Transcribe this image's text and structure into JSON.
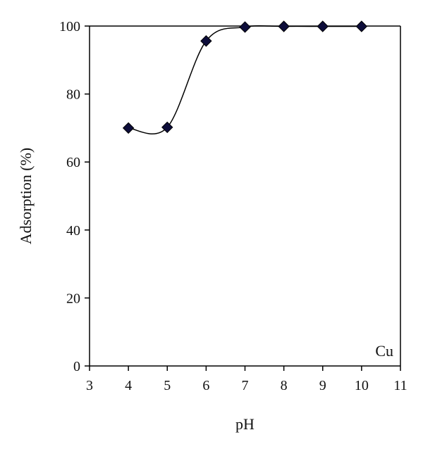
{
  "chart_data": {
    "type": "scatter",
    "xlabel": "pH",
    "ylabel": "Adsorption (%)",
    "xlim": [
      3,
      11
    ],
    "ylim": [
      0,
      100
    ],
    "xticks": [
      3,
      4,
      5,
      6,
      7,
      8,
      9,
      10,
      11
    ],
    "yticks": [
      0,
      20,
      40,
      60,
      80,
      100
    ],
    "grid": false,
    "annotation": "Cu",
    "annotation_position": "bottom-right",
    "marker": "diamond",
    "marker_color": "#0d0d3a",
    "line_color": "#000000",
    "smooth_fit_line": true,
    "series": [
      {
        "x": [
          4,
          5,
          6,
          7,
          8,
          9,
          10
        ],
        "y": [
          70,
          70.2,
          95.6,
          99.7,
          99.9,
          99.9,
          99.9
        ]
      }
    ]
  }
}
